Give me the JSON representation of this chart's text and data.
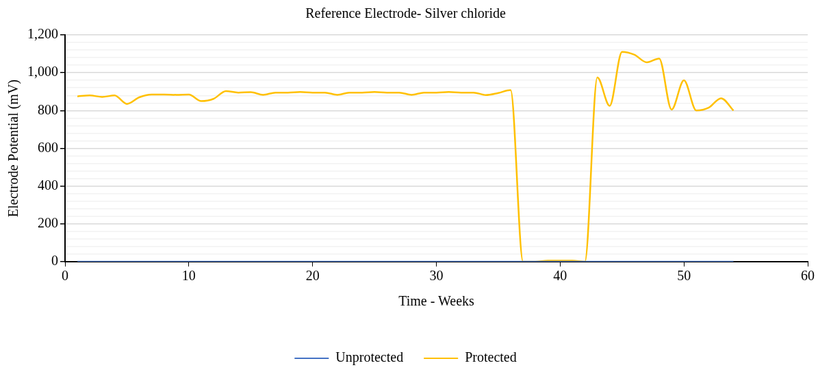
{
  "chart_data": {
    "type": "line",
    "title": "Reference Electrode- Silver chloride",
    "xlabel": "Time - Weeks",
    "ylabel": "Electrode Potential (mV)",
    "x": [
      1,
      2,
      3,
      4,
      5,
      6,
      7,
      8,
      9,
      10,
      11,
      12,
      13,
      14,
      15,
      16,
      17,
      18,
      19,
      20,
      21,
      22,
      23,
      24,
      25,
      26,
      27,
      28,
      29,
      30,
      31,
      32,
      33,
      34,
      35,
      36,
      37,
      38,
      39,
      40,
      41,
      42,
      43,
      44,
      45,
      46,
      47,
      48,
      49,
      50,
      51,
      52,
      53,
      54
    ],
    "series": [
      {
        "name": "Unprotected",
        "color": "#4472c4",
        "values": [
          0,
          0,
          0,
          0,
          0,
          0,
          0,
          0,
          0,
          0,
          0,
          0,
          0,
          0,
          0,
          0,
          0,
          0,
          0,
          0,
          0,
          0,
          0,
          0,
          0,
          0,
          0,
          0,
          0,
          0,
          0,
          0,
          0,
          0,
          0,
          0,
          0,
          0,
          0,
          0,
          0,
          0,
          0,
          0,
          0,
          0,
          0,
          0,
          0,
          0,
          0,
          0,
          0,
          0
        ]
      },
      {
        "name": "Protected",
        "color": "#ffc000",
        "values": [
          875,
          880,
          872,
          880,
          835,
          870,
          885,
          885,
          883,
          885,
          850,
          862,
          903,
          895,
          897,
          883,
          895,
          895,
          898,
          895,
          895,
          883,
          895,
          895,
          898,
          895,
          895,
          883,
          895,
          895,
          898,
          895,
          895,
          882,
          893,
          908,
          0,
          0,
          5,
          5,
          5,
          0,
          975,
          825,
          1110,
          1095,
          1055,
          1075,
          805,
          960,
          800,
          815,
          865,
          800
        ]
      }
    ],
    "xlim": [
      0,
      60
    ],
    "xticks": [
      0,
      10,
      20,
      30,
      40,
      50,
      60
    ],
    "ylim": [
      0,
      1200
    ],
    "yticks": [
      0,
      {
        "value": 40,
        "label": null
      },
      {
        "value": 80,
        "label": null
      },
      {
        "value": 120,
        "label": null
      },
      {
        "value": 160,
        "label": null
      },
      {
        "value": 200,
        "label": "200"
      },
      {
        "value": 240,
        "label": null
      },
      {
        "value": 280,
        "label": null
      },
      {
        "value": 320,
        "label": null
      },
      {
        "value": 360,
        "label": null
      },
      {
        "value": 400,
        "label": "400"
      },
      {
        "value": 440,
        "label": null
      },
      {
        "value": 480,
        "label": null
      },
      {
        "value": 520,
        "label": null
      },
      {
        "value": 560,
        "label": null
      },
      {
        "value": 600,
        "label": "600"
      },
      {
        "value": 640,
        "label": null
      },
      {
        "value": 680,
        "label": null
      },
      {
        "value": 720,
        "label": null
      },
      {
        "value": 760,
        "label": null
      },
      {
        "value": 800,
        "label": "800"
      },
      {
        "value": 840,
        "label": null
      },
      {
        "value": 880,
        "label": null
      },
      {
        "value": 920,
        "label": null
      },
      {
        "value": 960,
        "label": null
      },
      {
        "value": 1000,
        "label": "1,000"
      },
      {
        "value": 1040,
        "label": null
      },
      {
        "value": 1080,
        "label": null
      },
      {
        "value": 1120,
        "label": null
      },
      {
        "value": 1160,
        "label": null
      },
      {
        "value": 1200,
        "label": "1,200"
      }
    ],
    "grid": "y",
    "legend": "bottom",
    "marker": "none",
    "line_style": "solid"
  }
}
